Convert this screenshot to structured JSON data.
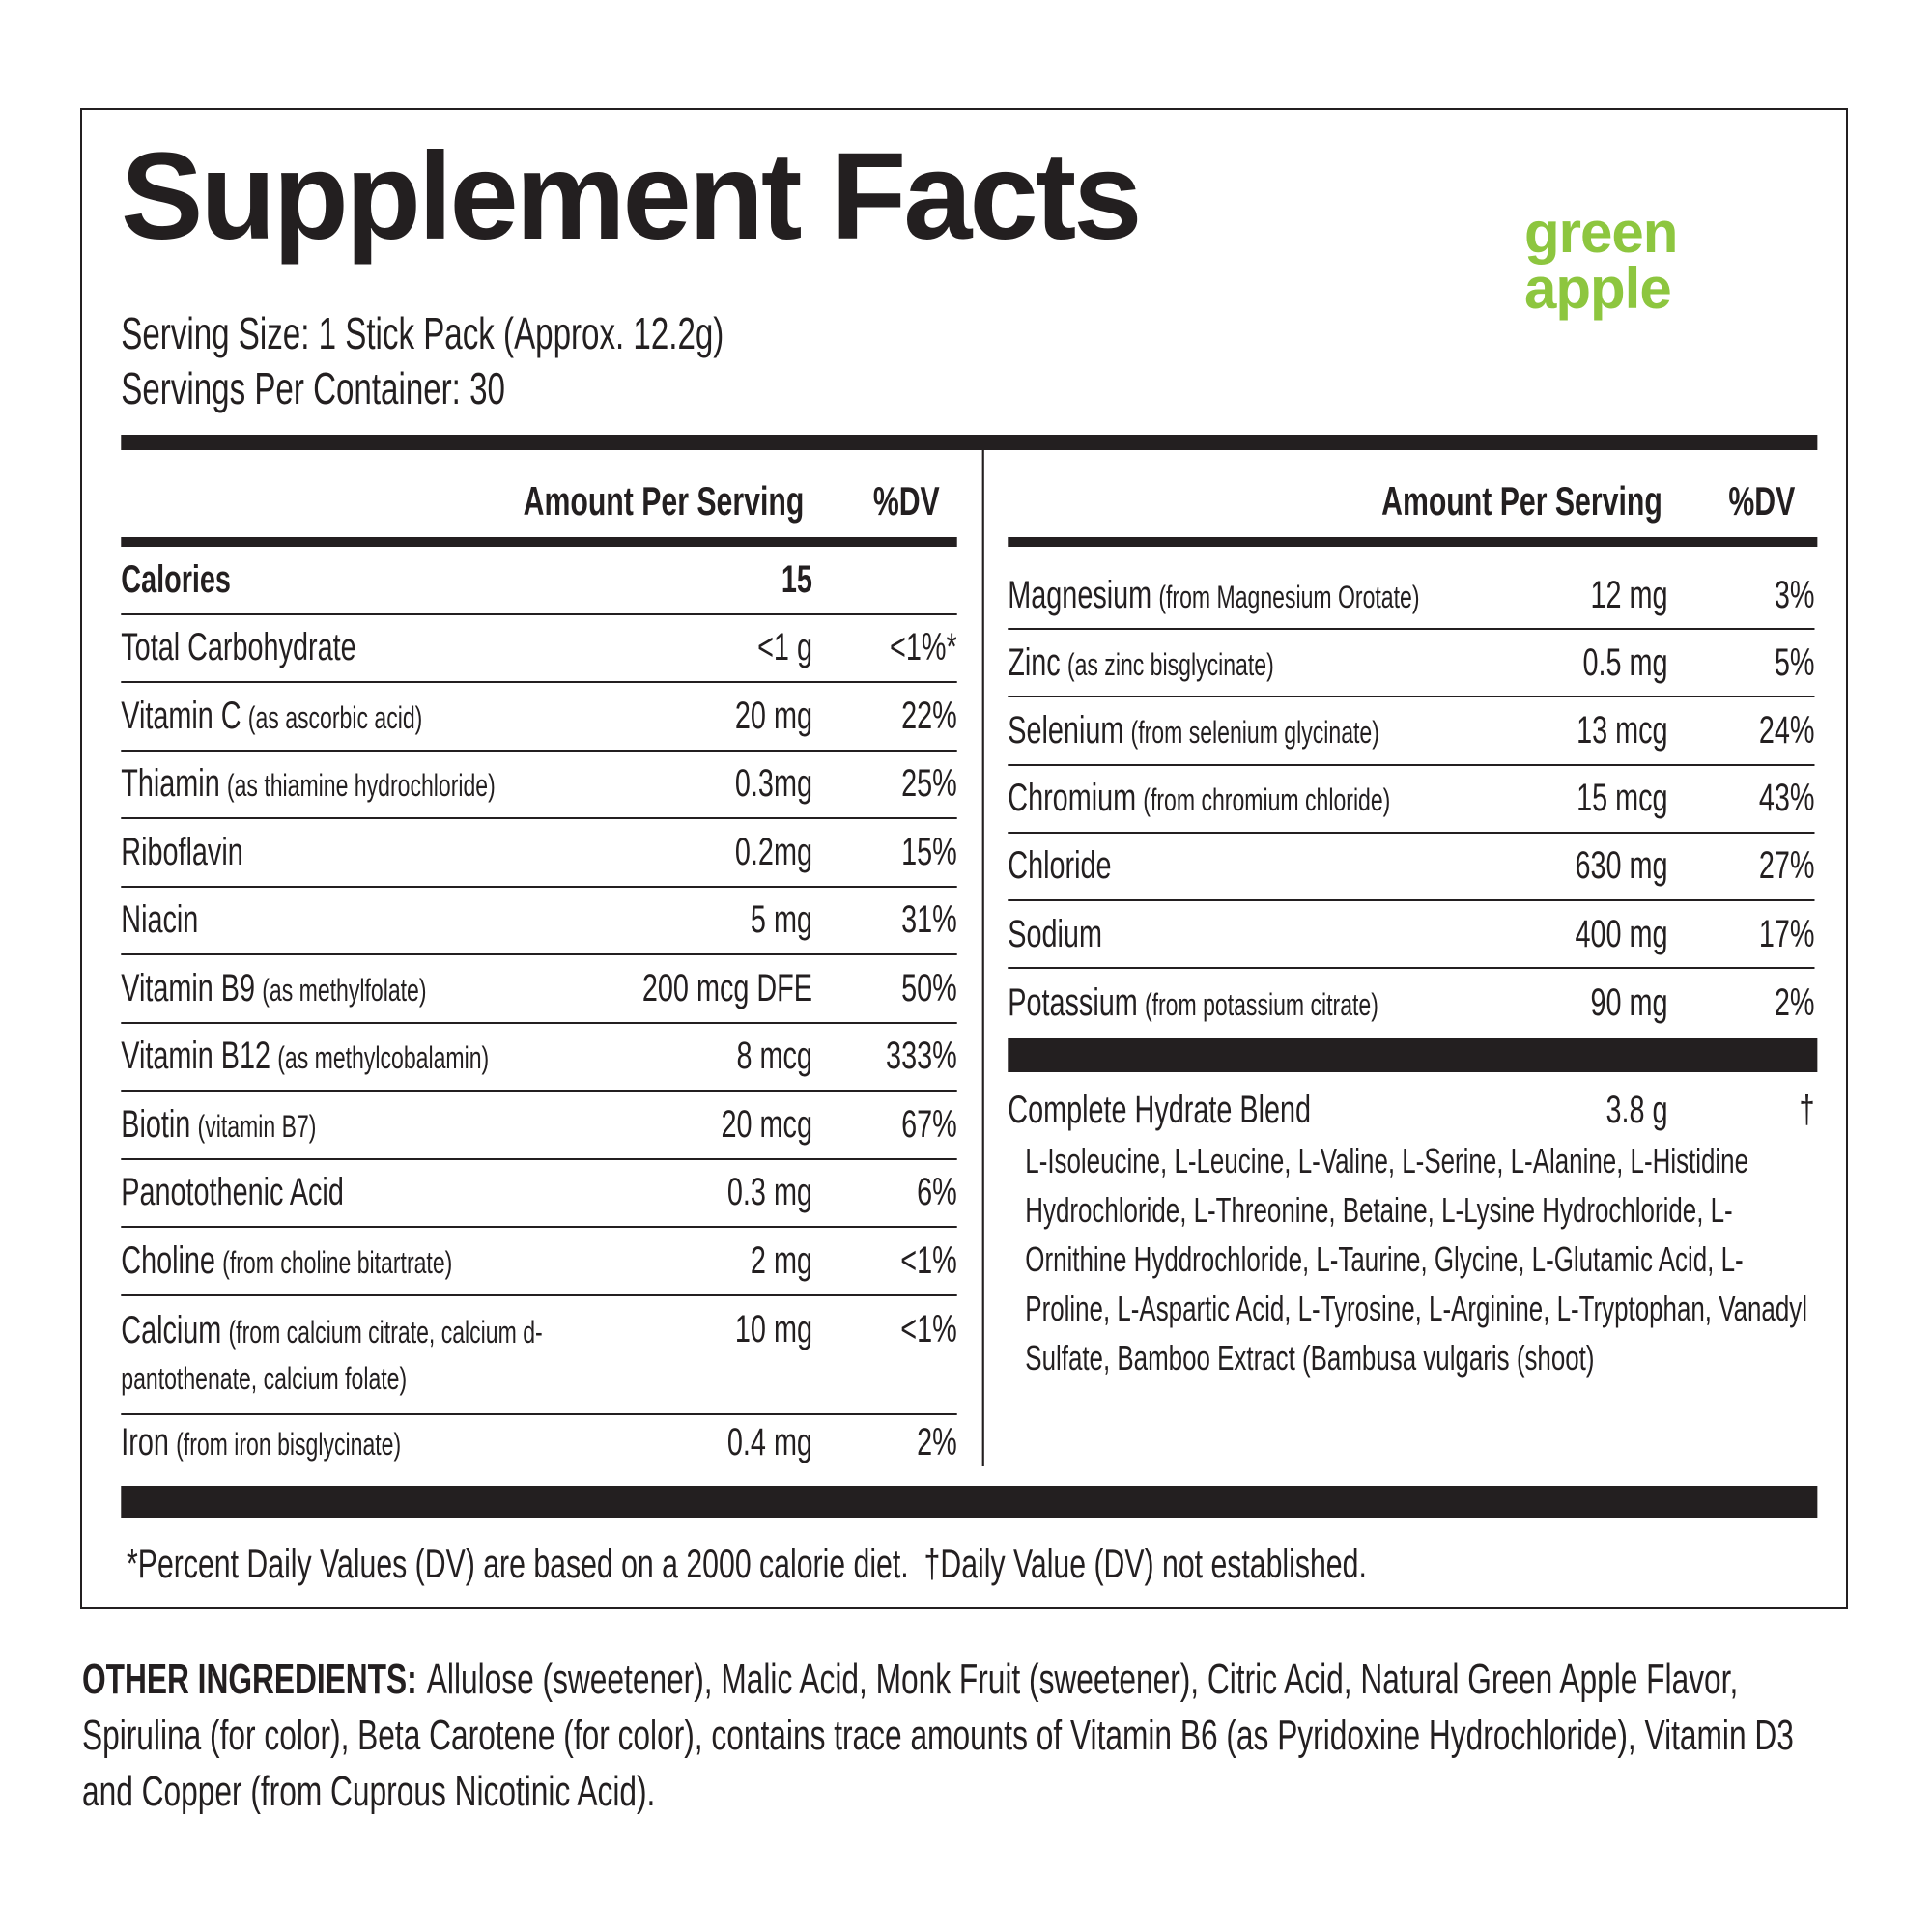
{
  "header": {
    "title": "Supplement Facts",
    "flavor_lines": [
      "green",
      "apple"
    ],
    "serving_size": "Serving Size: 1 Stick Pack (Approx. 12.2g)",
    "servings_per_container": "Servings Per Container: 30"
  },
  "left": {
    "headers": [
      "Amount Per Serving",
      "%DV"
    ],
    "rows": [
      {
        "name": "Calories",
        "amount": "15"
      },
      {
        "name": "Total Carbohydrate",
        "amount": "<1 g",
        "dv": "<1%*"
      },
      {
        "name": "Vitamin C",
        "note": "(as ascorbic acid)",
        "amount": "20 mg",
        "dv": "22%"
      },
      {
        "name": "Thiamin",
        "note": "(as thiamine hydrochloride)",
        "amount": "0.3mg",
        "dv": "25%"
      },
      {
        "name": "Riboflavin",
        "amount": "0.2mg",
        "dv": "15%"
      },
      {
        "name": "Niacin",
        "amount": "5 mg",
        "dv": "31%"
      },
      {
        "name": "Vitamin B9",
        "note": "(as methylfolate)",
        "amount": "200 mcg DFE",
        "dv": "50%"
      },
      {
        "name": "Vitamin B12",
        "note": "(as methylcobalamin)",
        "amount": "8 mcg",
        "dv": "333%"
      },
      {
        "name": "Biotin",
        "note": "(vitamin B7)",
        "amount": "20 mcg",
        "dv": "67%"
      },
      {
        "name": "Panotothenic Acid",
        "amount": "0.3 mg",
        "dv": "6%"
      },
      {
        "name": "Choline",
        "note": "(from choline bitartrate)",
        "amount": "2 mg",
        "dv": "<1%"
      },
      {
        "name": "Calcium",
        "note": "(from calcium citrate, calcium d-pantothenate, calcium folate)",
        "amount": "10 mg",
        "dv": "<1%"
      },
      {
        "name": "Iron",
        "note": "(from iron bisglycinate)",
        "amount": "0.4 mg",
        "dv": "2%"
      }
    ]
  },
  "right": {
    "headers": [
      "Amount Per Serving",
      "%DV"
    ],
    "rows": [
      {
        "name": "Magnesium",
        "note": "(from Magnesium Orotate)",
        "amount": "12 mg",
        "dv": "3%"
      },
      {
        "name": "Zinc",
        "note": "(as zinc bisglycinate)",
        "amount": "0.5 mg",
        "dv": "5%"
      },
      {
        "name": "Selenium",
        "note": "(from selenium glycinate)",
        "amount": "13 mcg",
        "dv": "24%"
      },
      {
        "name": "Chromium",
        "note": "(from chromium chloride)",
        "amount": "15 mcg",
        "dv": "43%"
      },
      {
        "name": "Chloride",
        "amount": "630 mg",
        "dv": "27%"
      },
      {
        "name": "Sodium",
        "amount": "400 mg",
        "dv": "17%"
      },
      {
        "name": "Potassium",
        "note": "(from potassium citrate)",
        "amount": "90 mg",
        "dv": "2%"
      }
    ],
    "blend": {
      "name": "Complete Hydrate Blend",
      "amount": "3.8 g",
      "dv": "†",
      "ingredients": "L-Isoleucine, L-Leucine, L-Valine, L-Serine, L-Alanine, L-Histidine Hydrochloride, L-Threonine, Betaine, L-Lysine Hydrochloride, L-Ornithine Hyddrochloride, L-Taurine, Glycine, L-Glutamic Acid, L-Proline, L-Aspartic Acid, L-Tyrosine, L-Arginine, L-Tryptophan, Vanadyl Sulfate, Bamboo Extract (Bambusa vulgaris (shoot)"
    }
  },
  "footnote": [
    "*Percent Daily Values (DV) are based on a 2000 calorie diet.",
    "†Daily Value (DV) not established."
  ],
  "other_ingredients": {
    "label": "OTHER INGREDIENTS:",
    "text": "Allulose (sweetener), Malic Acid, Monk Fruit (sweetener), Citric Acid, Natural Green Apple Flavor, Spirulina (for color), Beta Carotene (for color), contains trace amounts of Vitamin B6 (as Pyridoxine Hydrochloride), Vitamin D3 and Copper (from Cuprous Nicotinic Acid)."
  }
}
